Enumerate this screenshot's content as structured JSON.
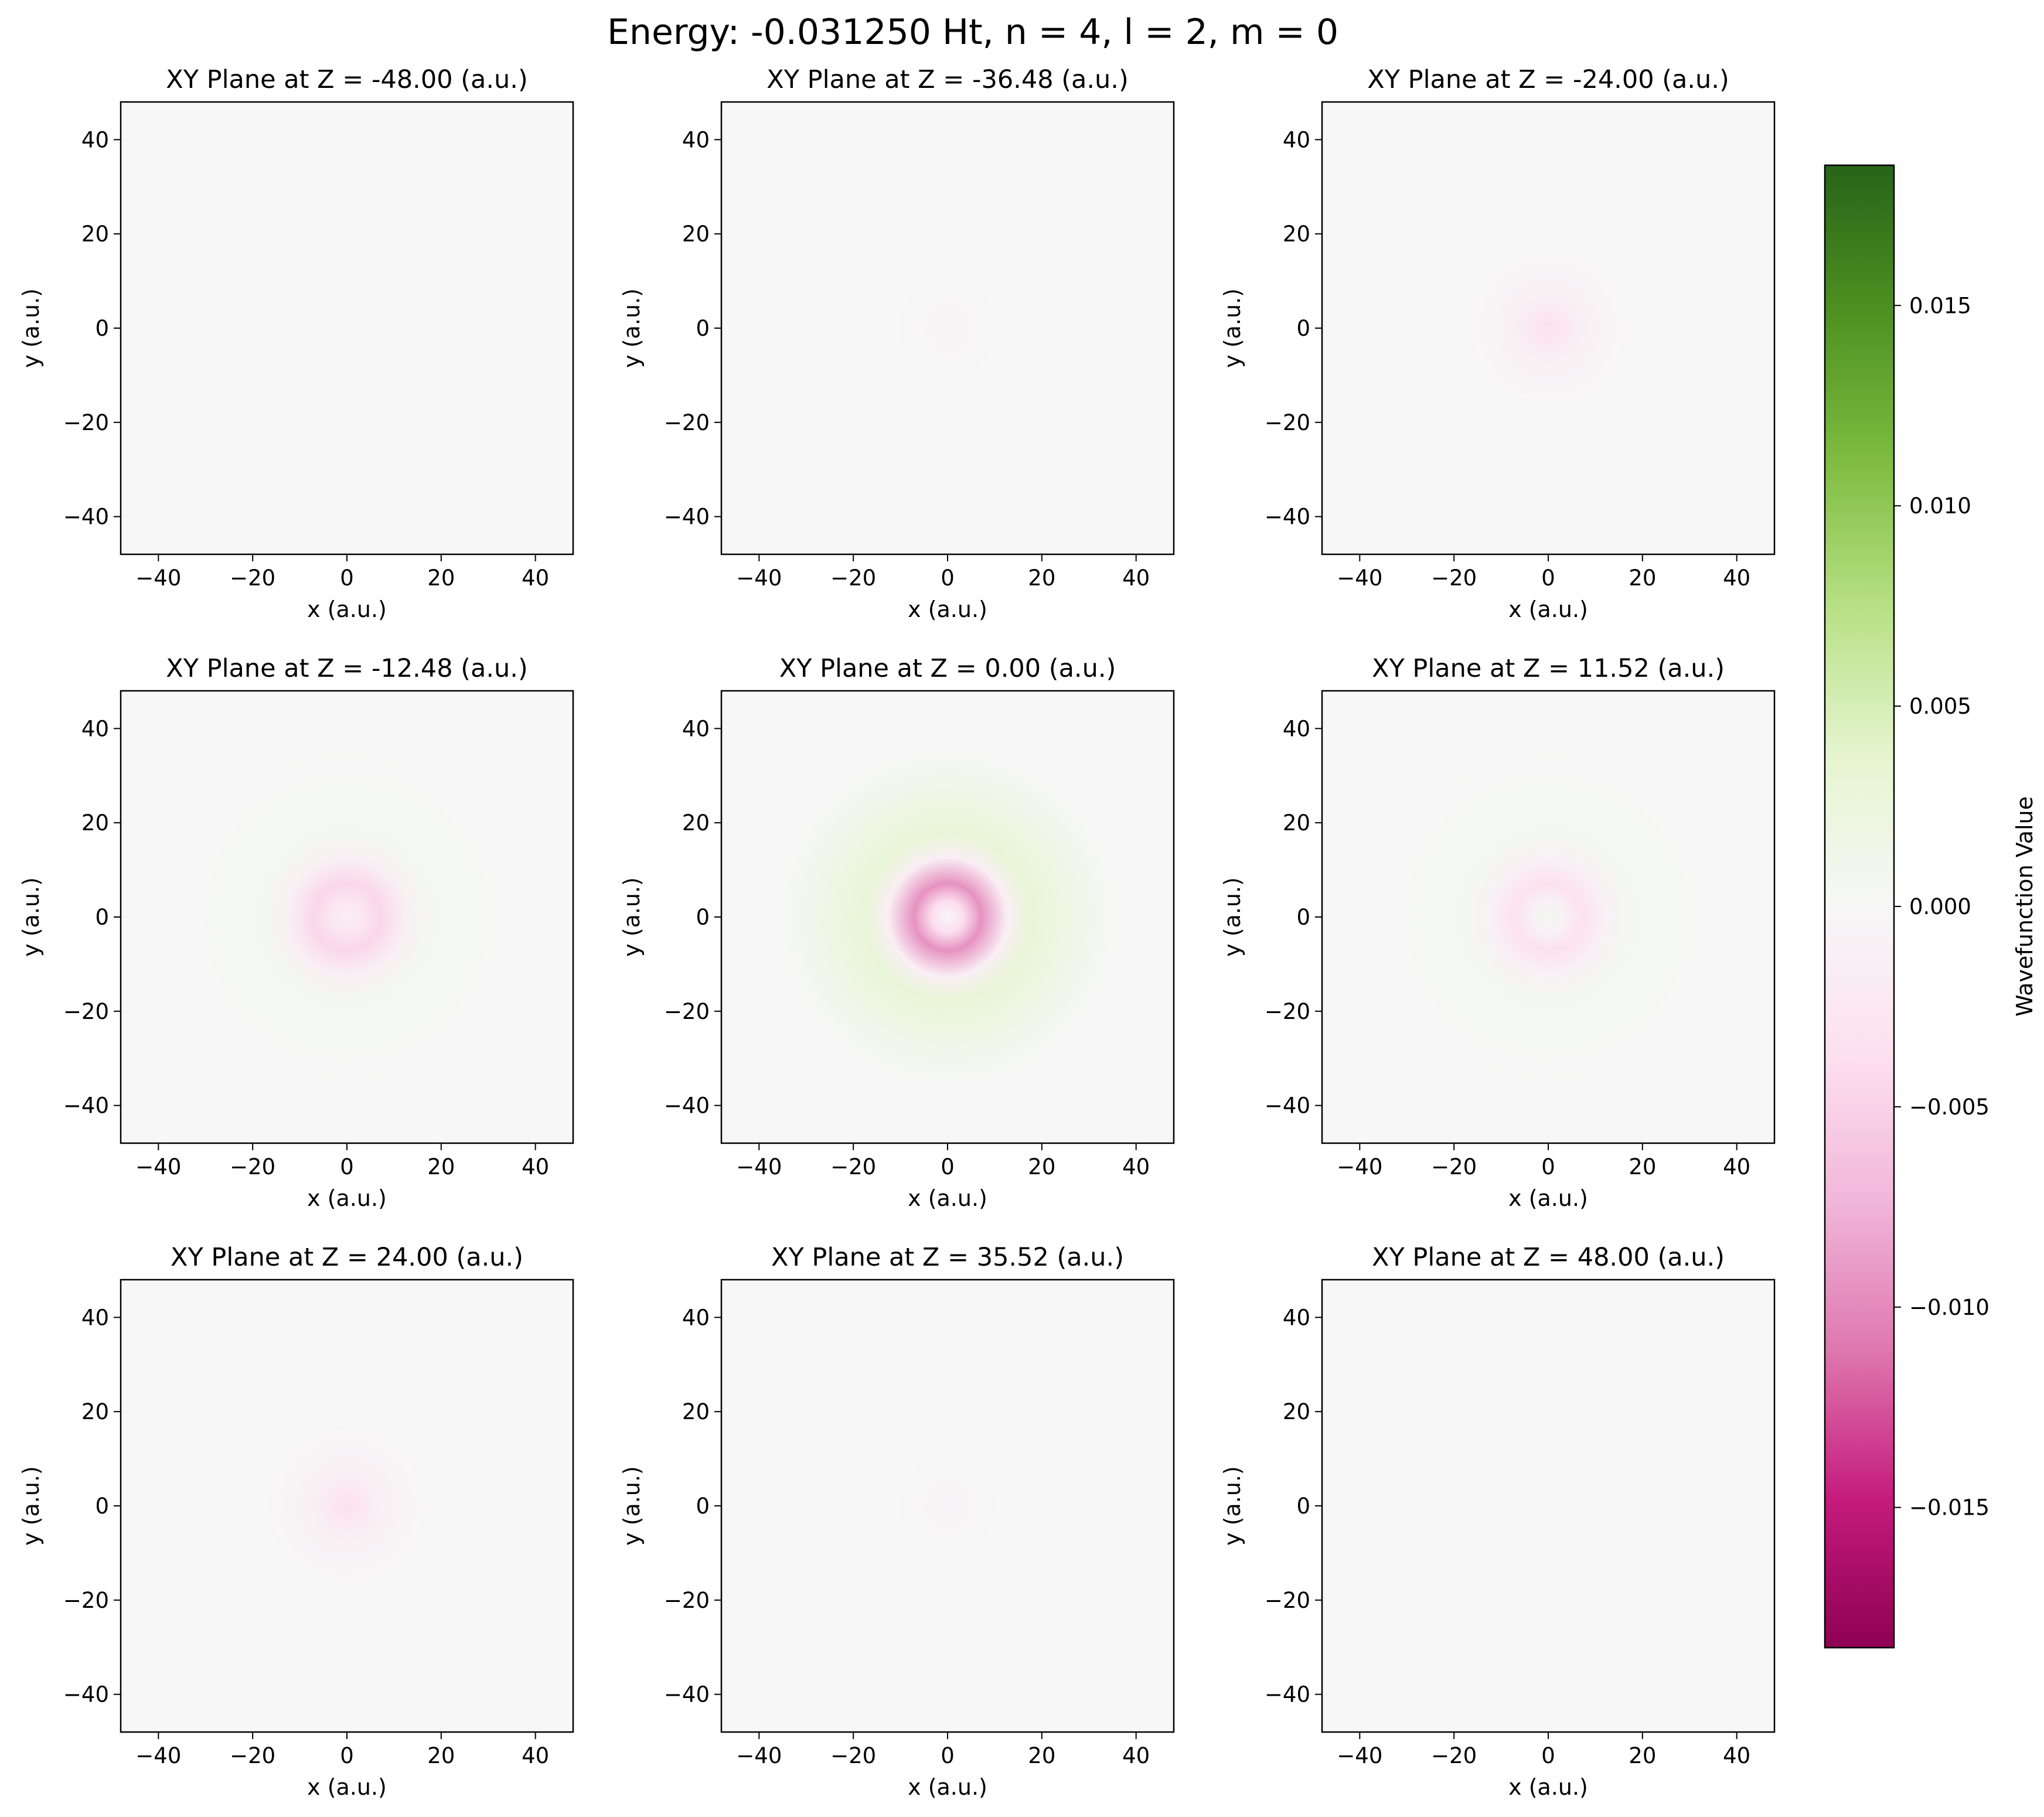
{
  "figure": {
    "suptitle": "Energy: -0.031250 Ht, n = 4, l = 2, m = 0"
  },
  "chart_data": {
    "type": "heatmap",
    "colormap": "PiYG",
    "xlabel": "x (a.u.)",
    "ylabel": "y (a.u.)",
    "xlim": [
      -48,
      48
    ],
    "ylim": [
      -48,
      48
    ],
    "xticks": [
      -40,
      -20,
      0,
      20,
      40
    ],
    "yticks": [
      -40,
      -20,
      0,
      20,
      40
    ],
    "tick_labels": [
      "−40",
      "−20",
      "0",
      "20",
      "40"
    ],
    "panels": [
      {
        "title": "XY Plane at Z = -48.00 (a.u.)",
        "z": -48.0,
        "core_value": -5e-05,
        "ring_value": 0.0,
        "outer_value": 0.0
      },
      {
        "title": "XY Plane at Z = -36.48 (a.u.)",
        "z": -36.48,
        "core_value": -0.0007,
        "ring_value": -0.0002,
        "outer_value": 0.0
      },
      {
        "title": "XY Plane at Z = -24.00 (a.u.)",
        "z": -24.0,
        "core_value": -0.0035,
        "ring_value": -0.0012,
        "outer_value": 0.0
      },
      {
        "title": "XY Plane at Z = -12.48 (a.u.)",
        "z": -12.48,
        "core_value": -0.0015,
        "ring_value": -0.0045,
        "outer_value": 0.0006
      },
      {
        "title": "XY Plane at Z = 0.00 (a.u.)",
        "z": 0.0,
        "core_value": -0.0001,
        "ring_value": -0.0095,
        "outer_value": 0.003
      },
      {
        "title": "XY Plane at Z = 11.52 (a.u.)",
        "z": 11.52,
        "core_value": 0.0008,
        "ring_value": -0.0035,
        "outer_value": 0.0006
      },
      {
        "title": "XY Plane at Z = 24.00 (a.u.)",
        "z": 24.0,
        "core_value": -0.0035,
        "ring_value": -0.0012,
        "outer_value": 0.0
      },
      {
        "title": "XY Plane at Z = 35.52 (a.u.)",
        "z": 35.52,
        "core_value": -0.0008,
        "ring_value": -0.0002,
        "outer_value": 0.0
      },
      {
        "title": "XY Plane at Z = 48.00 (a.u.)",
        "z": 48.0,
        "core_value": -5e-05,
        "ring_value": 0.0,
        "outer_value": 0.0
      }
    ],
    "colorbar": {
      "label": "Wavefunction Value",
      "range": [
        -0.0185,
        0.0185
      ],
      "ticks": [
        0.015,
        0.01,
        0.005,
        0.0,
        -0.005,
        -0.01,
        -0.015
      ],
      "tick_labels": [
        "0.015",
        "0.010",
        "0.005",
        "0.000",
        "−0.005",
        "−0.010",
        "−0.015"
      ]
    }
  }
}
